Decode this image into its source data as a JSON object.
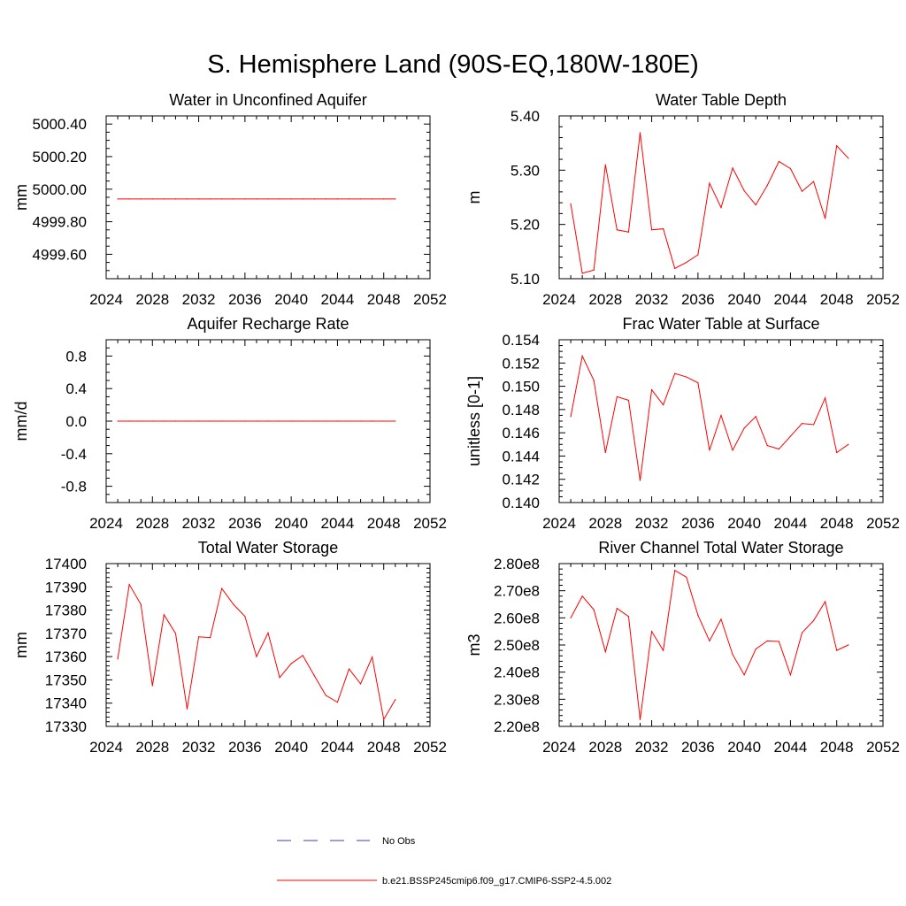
{
  "figure": {
    "title": "S. Hemisphere Land (90S-EQ,180W-180E)",
    "series_color": "#ff0000",
    "obs_color": "#3c3cbe"
  },
  "legend": {
    "items": [
      {
        "label": "No Obs",
        "style": "dashed",
        "color": "#3c3cbe"
      },
      {
        "label": "b.e21.BSSP245cmip6.f09_g17.CMIP6-SSP2-4.5.002",
        "style": "solid",
        "color": "#ff0000"
      }
    ]
  },
  "chart_data": [
    {
      "type": "line",
      "title": "Water in Unconfined Aquifer",
      "xlabel": "",
      "ylabel": "mm",
      "xlim": [
        2024,
        2052
      ],
      "ylim": [
        4999.45,
        5000.45
      ],
      "xticks": [
        2024,
        2028,
        2032,
        2036,
        2040,
        2044,
        2048,
        2052
      ],
      "xticklabels": [
        "2024",
        "2028",
        "2032",
        "2036",
        "2040",
        "2044",
        "2048",
        "2052"
      ],
      "yticks": [
        4999.6,
        4999.8,
        5000.0,
        5000.2,
        5000.4
      ],
      "yticklabels": [
        "4999.60",
        "4999.80",
        "5000.00",
        "5000.20",
        "5000.40"
      ],
      "yminor": 0.05,
      "x": [
        2025,
        2026,
        2027,
        2028,
        2029,
        2030,
        2031,
        2032,
        2033,
        2034,
        2035,
        2036,
        2037,
        2038,
        2039,
        2040,
        2041,
        2042,
        2043,
        2044,
        2045,
        2046,
        2047,
        2048,
        2049
      ],
      "series": [
        {
          "name": "b.e21.BSSP245cmip6.f09_g17.CMIP6-SSP2-4.5.002",
          "values": [
            4999.94,
            4999.94,
            4999.94,
            4999.94,
            4999.94,
            4999.94,
            4999.94,
            4999.94,
            4999.94,
            4999.94,
            4999.94,
            4999.94,
            4999.94,
            4999.94,
            4999.94,
            4999.94,
            4999.94,
            4999.94,
            4999.94,
            4999.94,
            4999.94,
            4999.94,
            4999.94,
            4999.94,
            4999.94
          ]
        }
      ]
    },
    {
      "type": "line",
      "title": "Water Table Depth",
      "xlabel": "",
      "ylabel": "m",
      "xlim": [
        2024,
        2052
      ],
      "ylim": [
        5.1,
        5.4
      ],
      "xticks": [
        2024,
        2028,
        2032,
        2036,
        2040,
        2044,
        2048,
        2052
      ],
      "xticklabels": [
        "2024",
        "2028",
        "2032",
        "2036",
        "2040",
        "2044",
        "2048",
        "2052"
      ],
      "yticks": [
        5.1,
        5.2,
        5.3,
        5.4
      ],
      "yticklabels": [
        "5.10",
        "5.20",
        "5.30",
        "5.40"
      ],
      "yminor": 0.02,
      "x": [
        2025,
        2026,
        2027,
        2028,
        2029,
        2030,
        2031,
        2032,
        2033,
        2034,
        2035,
        2036,
        2037,
        2038,
        2039,
        2040,
        2041,
        2042,
        2043,
        2044,
        2045,
        2046,
        2047,
        2048,
        2049
      ],
      "series": [
        {
          "name": "b.e21.BSSP245cmip6.f09_g17.CMIP6-SSP2-4.5.002",
          "values": [
            5.238,
            5.11,
            5.116,
            5.31,
            5.19,
            5.186,
            5.369,
            5.19,
            5.192,
            5.119,
            5.13,
            5.144,
            5.276,
            5.231,
            5.304,
            5.262,
            5.236,
            5.272,
            5.316,
            5.303,
            5.261,
            5.279,
            5.211,
            5.345,
            5.322
          ]
        }
      ]
    },
    {
      "type": "line",
      "title": "Aquifer Recharge Rate",
      "xlabel": "",
      "ylabel": "mm/d",
      "xlim": [
        2024,
        2052
      ],
      "ylim": [
        -1.0,
        1.0
      ],
      "xticks": [
        2024,
        2028,
        2032,
        2036,
        2040,
        2044,
        2048,
        2052
      ],
      "xticklabels": [
        "2024",
        "2028",
        "2032",
        "2036",
        "2040",
        "2044",
        "2048",
        "2052"
      ],
      "yticks": [
        -0.8,
        -0.4,
        0.0,
        0.4,
        0.8
      ],
      "yticklabels": [
        "-0.8",
        "-0.4",
        "0.0",
        "0.4",
        "0.8"
      ],
      "yminor": 0.1,
      "x": [
        2025,
        2026,
        2027,
        2028,
        2029,
        2030,
        2031,
        2032,
        2033,
        2034,
        2035,
        2036,
        2037,
        2038,
        2039,
        2040,
        2041,
        2042,
        2043,
        2044,
        2045,
        2046,
        2047,
        2048,
        2049
      ],
      "series": [
        {
          "name": "b.e21.BSSP245cmip6.f09_g17.CMIP6-SSP2-4.5.002",
          "values": [
            0,
            0,
            0,
            0,
            0,
            0,
            0,
            0,
            0,
            0,
            0,
            0,
            0,
            0,
            0,
            0,
            0,
            0,
            0,
            0,
            0,
            0,
            0,
            0,
            0
          ]
        }
      ]
    },
    {
      "type": "line",
      "title": "Frac Water Table at Surface",
      "xlabel": "",
      "ylabel": "unitless [0-1]",
      "xlim": [
        2024,
        2052
      ],
      "ylim": [
        0.14,
        0.154
      ],
      "xticks": [
        2024,
        2028,
        2032,
        2036,
        2040,
        2044,
        2048,
        2052
      ],
      "xticklabels": [
        "2024",
        "2028",
        "2032",
        "2036",
        "2040",
        "2044",
        "2048",
        "2052"
      ],
      "yticks": [
        0.14,
        0.142,
        0.144,
        0.146,
        0.148,
        0.15,
        0.152,
        0.154
      ],
      "yticklabels": [
        "0.140",
        "0.142",
        "0.144",
        "0.146",
        "0.148",
        "0.150",
        "0.152",
        "0.154"
      ],
      "yminor": 0.0005,
      "x": [
        2025,
        2026,
        2027,
        2028,
        2029,
        2030,
        2031,
        2032,
        2033,
        2034,
        2035,
        2036,
        2037,
        2038,
        2039,
        2040,
        2041,
        2042,
        2043,
        2044,
        2045,
        2046,
        2047,
        2048,
        2049
      ],
      "series": [
        {
          "name": "b.e21.BSSP245cmip6.f09_g17.CMIP6-SSP2-4.5.002",
          "values": [
            0.1474,
            0.1526,
            0.1505,
            0.1443,
            0.1491,
            0.1488,
            0.1419,
            0.1497,
            0.1484,
            0.1511,
            0.1508,
            0.1503,
            0.1445,
            0.1475,
            0.1445,
            0.1464,
            0.1474,
            0.1449,
            0.1446,
            0.1457,
            0.1468,
            0.1467,
            0.149,
            0.1443,
            0.145
          ]
        }
      ]
    },
    {
      "type": "line",
      "title": "Total Water Storage",
      "xlabel": "",
      "ylabel": "mm",
      "xlim": [
        2024,
        2052
      ],
      "ylim": [
        17330,
        17400
      ],
      "xticks": [
        2024,
        2028,
        2032,
        2036,
        2040,
        2044,
        2048,
        2052
      ],
      "xticklabels": [
        "2024",
        "2028",
        "2032",
        "2036",
        "2040",
        "2044",
        "2048",
        "2052"
      ],
      "yticks": [
        17330,
        17340,
        17350,
        17360,
        17370,
        17380,
        17390,
        17400
      ],
      "yticklabels": [
        "17330",
        "17340",
        "17350",
        "17360",
        "17370",
        "17380",
        "17390",
        "17400"
      ],
      "yminor": 2,
      "x": [
        2025,
        2026,
        2027,
        2028,
        2029,
        2030,
        2031,
        2032,
        2033,
        2034,
        2035,
        2036,
        2037,
        2038,
        2039,
        2040,
        2041,
        2042,
        2043,
        2044,
        2045,
        2046,
        2047,
        2048,
        2049
      ],
      "series": [
        {
          "name": "b.e21.BSSP245cmip6.f09_g17.CMIP6-SSP2-4.5.002",
          "values": [
            17359,
            17391,
            17382.5,
            17347.5,
            17378,
            17370,
            17337.5,
            17368.5,
            17368.2,
            17389.3,
            17382.5,
            17377.3,
            17360,
            17370.2,
            17351,
            17357,
            17360.5,
            17351.8,
            17343.3,
            17340.4,
            17354.7,
            17348.3,
            17359.8,
            17333,
            17341.5
          ]
        }
      ]
    },
    {
      "type": "line",
      "title": "River Channel Total Water Storage",
      "xlabel": "",
      "ylabel": "m3",
      "xlim": [
        2024,
        2052
      ],
      "ylim": [
        220000000,
        280000000
      ],
      "xticks": [
        2024,
        2028,
        2032,
        2036,
        2040,
        2044,
        2048,
        2052
      ],
      "xticklabels": [
        "2024",
        "2028",
        "2032",
        "2036",
        "2040",
        "2044",
        "2048",
        "2052"
      ],
      "yticks": [
        220000000,
        230000000,
        240000000,
        250000000,
        260000000,
        270000000,
        280000000
      ],
      "yticklabels": [
        "2.20e8",
        "2.30e8",
        "2.40e8",
        "2.50e8",
        "2.60e8",
        "2.70e8",
        "2.80e8"
      ],
      "yminor": 2000000,
      "x": [
        2025,
        2026,
        2027,
        2028,
        2029,
        2030,
        2031,
        2032,
        2033,
        2034,
        2035,
        2036,
        2037,
        2038,
        2039,
        2040,
        2041,
        2042,
        2043,
        2044,
        2045,
        2046,
        2047,
        2048,
        2049
      ],
      "series": [
        {
          "name": "b.e21.BSSP245cmip6.f09_g17.CMIP6-SSP2-4.5.002",
          "values": [
            260000000,
            268000000,
            263000000,
            247500000,
            263500000,
            260500000,
            222500000,
            255000000,
            248000000,
            277500000,
            275000000,
            261000000,
            251500000,
            259500000,
            246500000,
            239000000,
            248500000,
            251500000,
            251300000,
            239000000,
            254500000,
            259000000,
            266000000,
            248000000,
            250000000
          ]
        }
      ]
    }
  ]
}
